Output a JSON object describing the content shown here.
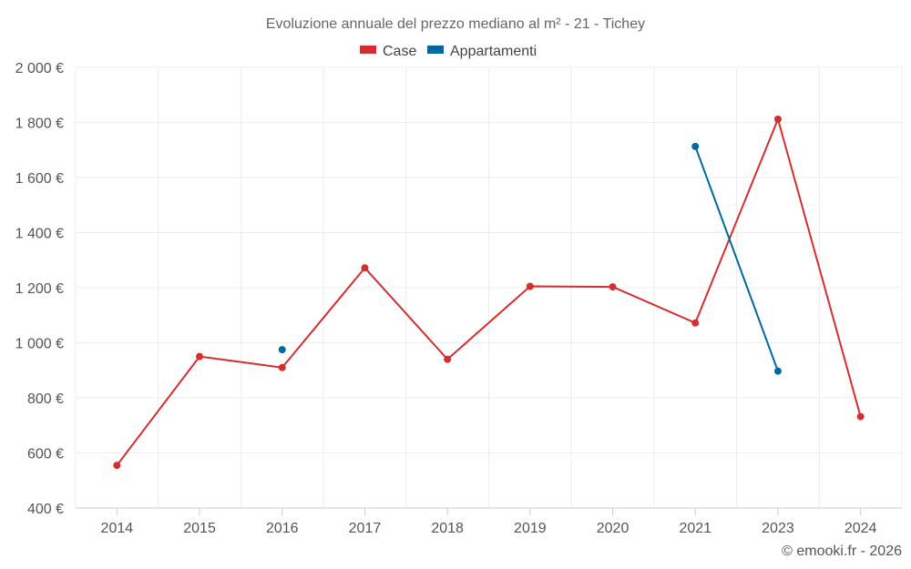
{
  "chart_data": {
    "type": "line",
    "title": "Evoluzione annuale del prezzo mediano al m² - 21 - Tichey",
    "categories": [
      "2014",
      "2015",
      "2016",
      "2017",
      "2018",
      "2019",
      "2020",
      "2021",
      "2023",
      "2024"
    ],
    "ylim": [
      400,
      2000
    ],
    "yticks": [
      400,
      600,
      800,
      1000,
      1200,
      1400,
      1600,
      1800,
      2000
    ],
    "ytick_labels": [
      "400 €",
      "600 €",
      "800 €",
      "1 000 €",
      "1 200 €",
      "1 400 €",
      "1 600 €",
      "1 800 €",
      "2 000 €"
    ],
    "grid": true,
    "legend_position": "top-center",
    "series": [
      {
        "name": "Case",
        "color": "#d32f2f",
        "values": [
          555,
          950,
          910,
          1272,
          940,
          1205,
          1203,
          1072,
          1812,
          732
        ]
      },
      {
        "name": "Appartamenti",
        "color": "#0068a0",
        "values": [
          null,
          null,
          975,
          null,
          null,
          null,
          null,
          1713,
          897,
          null
        ]
      }
    ]
  },
  "credit": "© emooki.fr - 2026"
}
